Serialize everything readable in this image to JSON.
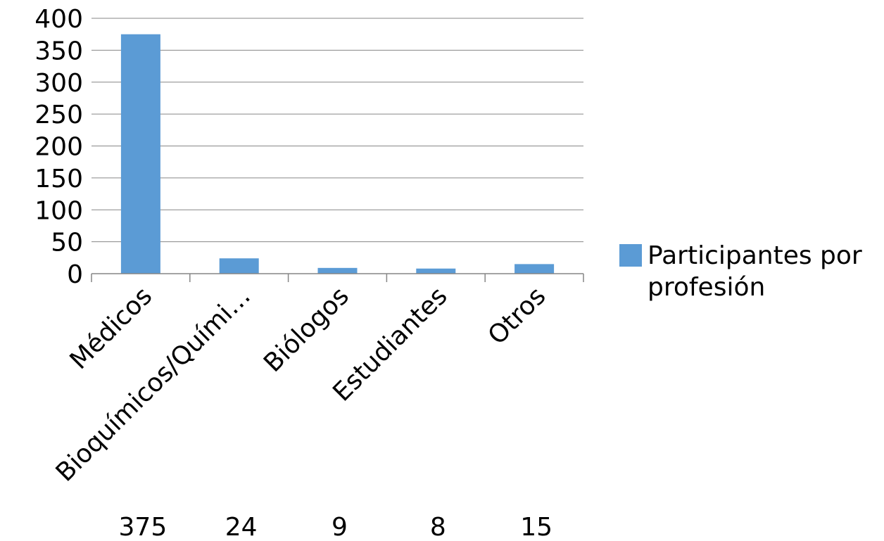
{
  "chart_data": {
    "type": "bar",
    "categories": [
      "Médicos",
      "Bioquímicos/Químicos",
      "Biólogos",
      "Estudiantes",
      "Otros"
    ],
    "category_tick_labels": [
      "Médicos",
      "Bioquímicos/Quími…",
      "Biólogos",
      "Estudiantes",
      "Otros"
    ],
    "series": [
      {
        "name": "Participantes por profesión",
        "values": [
          375,
          24,
          9,
          8,
          15
        ],
        "color": "#5b9bd5"
      }
    ],
    "ylim": [
      0,
      400
    ],
    "y_ticks": [
      0,
      50,
      100,
      150,
      200,
      250,
      300,
      350,
      400
    ],
    "grid": true,
    "legend": {
      "position": "right",
      "label_lines": [
        "Participantes por",
        "profesión"
      ]
    },
    "value_row": [
      "375",
      "24",
      "9",
      "8",
      "15"
    ],
    "title": "",
    "xlabel": "",
    "ylabel": ""
  },
  "colors": {
    "bar": "#5b9bd5",
    "grid": "#868686",
    "axis": "#868686",
    "text": "#000000"
  }
}
